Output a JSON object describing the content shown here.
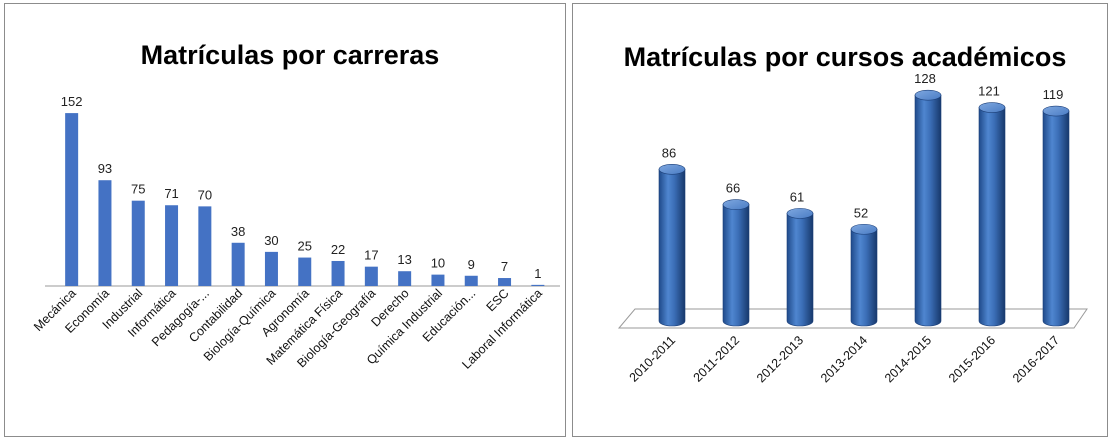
{
  "chart_data": [
    {
      "type": "bar",
      "title": "Matrículas por carreras",
      "categories": [
        "Mecánica",
        "Economía",
        "Industrial",
        "Informática",
        "Pedagogía-...",
        "Contabilidad",
        "Biología-Química",
        "Agronomía",
        "Matemática Física",
        "Biología-Geografía",
        "Derecho",
        "Química Industrial",
        "Educación...",
        "ESC",
        "Laboral Informática"
      ],
      "values": [
        152,
        93,
        75,
        71,
        70,
        38,
        30,
        25,
        22,
        17,
        13,
        10,
        9,
        7,
        1
      ],
      "ylim": [
        0,
        160
      ],
      "grid": false,
      "color": "#4472c4"
    },
    {
      "type": "bar",
      "style": "3d-cylinder",
      "title": "Matrículas por cursos académicos",
      "categories": [
        "2010-2011",
        "2011-2012",
        "2012-2013",
        "2013-2014",
        "2014-2015",
        "2015-2016",
        "2016-2017"
      ],
      "values": [
        86,
        66,
        61,
        52,
        128,
        121,
        119
      ],
      "ylim": [
        0,
        140
      ],
      "grid": false,
      "color": "#3a6db5"
    }
  ]
}
